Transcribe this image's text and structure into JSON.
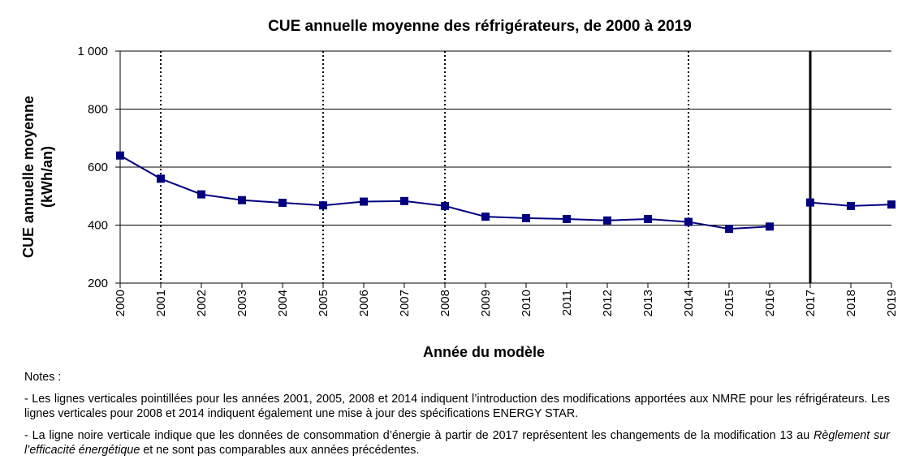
{
  "chart_data": {
    "type": "line",
    "title": "CUE annuelle moyenne des réfrigérateurs, de 2000 à 2019",
    "xlabel": "Année du modèle",
    "ylabel_line1": "CUE annuelle moyenne",
    "ylabel_line2": "(kWh/an)",
    "ylim": [
      200,
      1000
    ],
    "yticks": [
      200,
      400,
      600,
      800,
      1000
    ],
    "ytick_labels": [
      "200",
      "400",
      "600",
      "800",
      "1 000"
    ],
    "gridlines": [
      400,
      600,
      800,
      1000
    ],
    "categories": [
      "2000",
      "2001",
      "2002",
      "2003",
      "2004",
      "2005",
      "2006",
      "2007",
      "2008",
      "2009",
      "2010",
      "2011",
      "2012",
      "2013",
      "2014",
      "2015",
      "2016",
      "2017",
      "2018",
      "2019"
    ],
    "series": [
      {
        "color": "#000080",
        "segments": [
          {
            "x": [
              "2000",
              "2001",
              "2002",
              "2003",
              "2004",
              "2005",
              "2006",
              "2007",
              "2008",
              "2009",
              "2010",
              "2011",
              "2012",
              "2013",
              "2014",
              "2015",
              "2016"
            ],
            "y": [
              640,
              560,
              506,
              486,
              477,
              468,
              481,
              483,
              466,
              429,
              424,
              421,
              416,
              421,
              411,
              387,
              395
            ]
          },
          {
            "x": [
              "2017",
              "2018",
              "2019"
            ],
            "y": [
              478,
              466,
              471
            ]
          }
        ]
      }
    ],
    "dotted_vlines": [
      "2001",
      "2005",
      "2008",
      "2014"
    ],
    "solid_vlines": [
      "2017"
    ]
  },
  "notes": {
    "heading": "Notes :",
    "note1": "- Les lignes verticales pointillées pour les années 2001, 2005, 2008 et 2014 indiquent l’introduction des modifications apportées aux NMRE pour les réfrigérateurs. Les lignes verticales pour 2008 et 2014 indiquent également une mise à jour des spécifications ENERGY STAR.",
    "note2_before": "- La ligne noire verticale indique que les données de consommation d’énergie à partir de 2017 représentent les changements de la modification 13 au ",
    "note2_italic": "Règlement sur l’efficacité énergétique",
    "note2_after": " et ne sont pas comparables aux années précédentes."
  }
}
